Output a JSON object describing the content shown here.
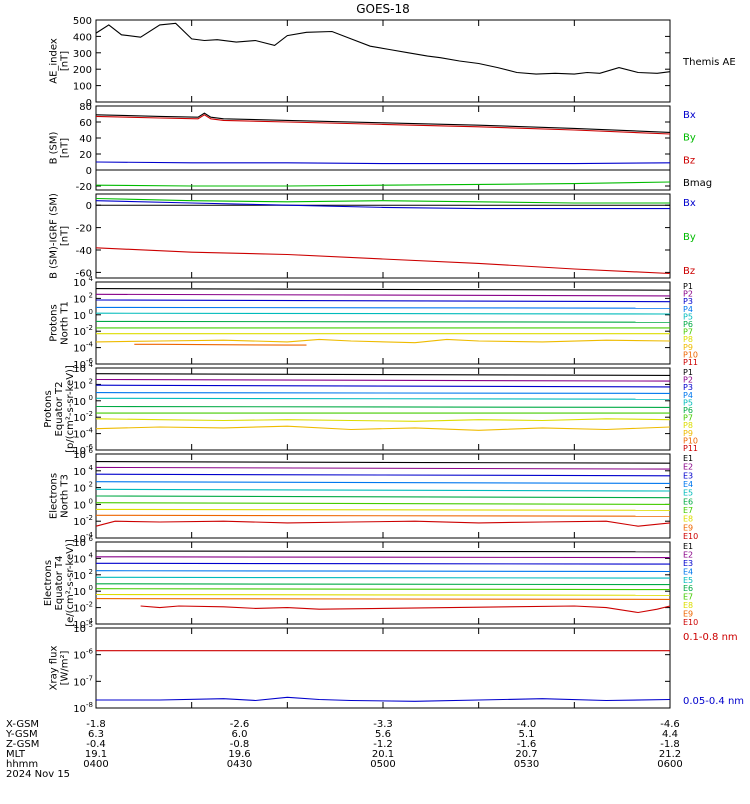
{
  "title": "GOES-18",
  "chart_data": [
    {
      "type": "line",
      "ylabel": "AE_index\n[nT]",
      "ylim": [
        0,
        500
      ],
      "ticks": [
        [
          0,
          "0"
        ],
        [
          100,
          "100"
        ],
        [
          200,
          "200"
        ],
        [
          300,
          "300"
        ],
        [
          400,
          "400"
        ],
        [
          500,
          "500"
        ]
      ],
      "log": false,
      "series": [
        {
          "name": "Themis AE",
          "color": "#000000",
          "x": [
            0,
            4,
            8,
            14,
            20,
            25,
            30,
            34,
            38,
            44,
            50,
            56,
            60,
            66,
            74,
            80,
            86,
            92,
            98,
            104,
            108,
            114,
            120,
            126,
            132,
            138,
            144,
            150,
            154,
            158,
            164,
            170,
            176,
            180
          ],
          "values": [
            420,
            470,
            410,
            395,
            470,
            480,
            385,
            375,
            380,
            365,
            375,
            345,
            405,
            425,
            430,
            385,
            340,
            320,
            300,
            280,
            270,
            250,
            235,
            210,
            180,
            170,
            175,
            170,
            180,
            175,
            210,
            180,
            175,
            185
          ]
        }
      ]
    },
    {
      "type": "line",
      "ylabel": "B (SM)\n[nT]",
      "ylim": [
        -25,
        80
      ],
      "ticks": [
        [
          80,
          "80"
        ],
        [
          60,
          "60"
        ],
        [
          40,
          "40"
        ],
        [
          20,
          "20"
        ],
        [
          0,
          "0"
        ],
        [
          -20,
          "-20"
        ]
      ],
      "log": false,
      "series": [
        {
          "name": "Bx",
          "color": "#0000cc",
          "x": [
            0,
            30,
            60,
            90,
            120,
            150,
            180
          ],
          "values": [
            10,
            9,
            9,
            8,
            8,
            8,
            9
          ]
        },
        {
          "name": "By",
          "color": "#00bb00",
          "x": [
            0,
            30,
            60,
            90,
            120,
            150,
            180
          ],
          "values": [
            -19,
            -20,
            -20,
            -19,
            -18,
            -17,
            -15
          ]
        },
        {
          "name": "Bz",
          "color": "#cc0000",
          "x": [
            0,
            20,
            32,
            34,
            36,
            40,
            60,
            90,
            120,
            150,
            180
          ],
          "values": [
            67,
            65,
            64,
            69,
            64,
            62,
            60,
            57,
            54,
            50,
            45
          ]
        },
        {
          "name": "Bmag",
          "color": "#000000",
          "x": [
            0,
            20,
            32,
            34,
            36,
            40,
            60,
            90,
            120,
            150,
            180
          ],
          "values": [
            69,
            67,
            66,
            71,
            66,
            64,
            62,
            59,
            56,
            52,
            47
          ]
        }
      ]
    },
    {
      "type": "line",
      "ylabel": "B (SM)-IGRF (SM)\n[nT]",
      "ylim": [
        -65,
        10
      ],
      "ticks": [
        [
          0,
          "0"
        ],
        [
          -20,
          "-20"
        ],
        [
          -40,
          "-40"
        ],
        [
          -60,
          "-60"
        ]
      ],
      "log": false,
      "series": [
        {
          "name": "Bx",
          "color": "#0000cc",
          "x": [
            0,
            30,
            60,
            90,
            120,
            150,
            180
          ],
          "values": [
            4,
            2,
            0,
            -2,
            -3,
            -3,
            -3
          ]
        },
        {
          "name": "By",
          "color": "#00bb00",
          "x": [
            0,
            30,
            60,
            90,
            120,
            150,
            180
          ],
          "values": [
            6,
            4,
            3,
            4,
            3,
            2,
            2
          ]
        },
        {
          "name": "Bz",
          "color": "#cc0000",
          "x": [
            0,
            30,
            60,
            90,
            120,
            150,
            180
          ],
          "values": [
            -38,
            -42,
            -44,
            -48,
            -52,
            -57,
            -61
          ]
        }
      ]
    },
    {
      "type": "line",
      "ylabel": "Protons\nNorth T1",
      "ylim": [
        -6,
        4
      ],
      "ticks": [
        [
          4,
          "10^4"
        ],
        [
          2,
          "10^2"
        ],
        [
          0,
          "10^0"
        ],
        [
          -2,
          "10^-2"
        ],
        [
          -4,
          "10^-4"
        ],
        [
          -6,
          "10^-6"
        ]
      ],
      "log": true,
      "series": [
        {
          "name": "P1",
          "color": "#000000",
          "x": [
            0,
            180
          ],
          "values": [
            3.2,
            3.0
          ]
        },
        {
          "name": "P2",
          "color": "#880088",
          "x": [
            0,
            180
          ],
          "values": [
            2.5,
            2.3
          ]
        },
        {
          "name": "P3",
          "color": "#0000cc",
          "x": [
            0,
            180
          ],
          "values": [
            1.8,
            1.6
          ]
        },
        {
          "name": "P4",
          "color": "#0077ee",
          "x": [
            0,
            180
          ],
          "values": [
            0.9,
            0.8
          ]
        },
        {
          "name": "P5",
          "color": "#00bbbb",
          "x": [
            0,
            180
          ],
          "values": [
            0.2,
            0.1
          ]
        },
        {
          "name": "P6",
          "color": "#00aa44",
          "x": [
            0,
            180
          ],
          "values": [
            -0.8,
            -0.9
          ]
        },
        {
          "name": "P7",
          "color": "#44cc00",
          "x": [
            0,
            180
          ],
          "values": [
            -1.6,
            -1.6
          ]
        },
        {
          "name": "P8",
          "color": "#dddd00",
          "x": [
            0,
            180
          ],
          "values": [
            -2.3,
            -2.3
          ]
        },
        {
          "name": "P9",
          "color": "#eebb00",
          "x": [
            0,
            20,
            40,
            60,
            70,
            80,
            100,
            110,
            120,
            140,
            160,
            180
          ],
          "values": [
            -3.3,
            -3.2,
            -3.1,
            -3.3,
            -3.0,
            -3.2,
            -3.4,
            -3.0,
            -3.2,
            -3.3,
            -3.1,
            -3.2
          ]
        },
        {
          "name": "P10",
          "color": "#ee6600",
          "x": [
            12,
            20,
            60,
            66
          ],
          "values": [
            -3.6,
            -3.6,
            -3.7,
            -3.7
          ]
        },
        {
          "name": "P11",
          "color": "#cc0000",
          "x": [],
          "values": []
        }
      ]
    },
    {
      "type": "line",
      "ylabel": "Protons\nEquator T2\n[p/(cm²-s-sr-keV)]",
      "ylim": [
        -6,
        4
      ],
      "ticks": [
        [
          4,
          "10^4"
        ],
        [
          2,
          "10^2"
        ],
        [
          0,
          "10^0"
        ],
        [
          -2,
          "10^-2"
        ],
        [
          -4,
          "10^-4"
        ],
        [
          -6,
          "10^-6"
        ]
      ],
      "log": true,
      "series": [
        {
          "name": "P1",
          "color": "#000000",
          "x": [
            0,
            180
          ],
          "values": [
            3.3,
            3.1
          ]
        },
        {
          "name": "P2",
          "color": "#880088",
          "x": [
            0,
            180
          ],
          "values": [
            2.6,
            2.4
          ]
        },
        {
          "name": "P3",
          "color": "#0000cc",
          "x": [
            0,
            180
          ],
          "values": [
            1.9,
            1.7
          ]
        },
        {
          "name": "P4",
          "color": "#0077ee",
          "x": [
            0,
            180
          ],
          "values": [
            1.0,
            0.9
          ]
        },
        {
          "name": "P5",
          "color": "#00bbbb",
          "x": [
            0,
            180
          ],
          "values": [
            0.3,
            0.2
          ]
        },
        {
          "name": "P6",
          "color": "#00aa44",
          "x": [
            0,
            180
          ],
          "values": [
            -0.7,
            -0.8
          ]
        },
        {
          "name": "P7",
          "color": "#44cc00",
          "x": [
            0,
            180
          ],
          "values": [
            -1.5,
            -1.5
          ]
        },
        {
          "name": "P8",
          "color": "#dddd00",
          "x": [
            0,
            20,
            40,
            60,
            80,
            100,
            120,
            140,
            160,
            180
          ],
          "values": [
            -2.2,
            -2.3,
            -2.4,
            -2.3,
            -2.4,
            -2.5,
            -2.3,
            -2.4,
            -2.2,
            -2.3
          ]
        },
        {
          "name": "P9",
          "color": "#eebb00",
          "x": [
            0,
            20,
            40,
            60,
            80,
            100,
            120,
            140,
            160,
            180
          ],
          "values": [
            -3.4,
            -3.2,
            -3.3,
            -3.1,
            -3.5,
            -3.3,
            -3.6,
            -3.3,
            -3.5,
            -3.2
          ]
        },
        {
          "name": "P10",
          "color": "#ee6600",
          "x": [],
          "values": []
        },
        {
          "name": "P11",
          "color": "#cc0000",
          "x": [],
          "values": []
        }
      ]
    },
    {
      "type": "line",
      "ylabel": "Electrons\nNorth T3",
      "ylim": [
        -4,
        6
      ],
      "ticks": [
        [
          6,
          "10^6"
        ],
        [
          4,
          "10^4"
        ],
        [
          2,
          "10^2"
        ],
        [
          0,
          "10^0"
        ],
        [
          -2,
          "10^-2"
        ],
        [
          -4,
          "10^-4"
        ]
      ],
      "log": true,
      "series": [
        {
          "name": "E1",
          "color": "#000000",
          "x": [
            0,
            180
          ],
          "values": [
            5.1,
            4.9
          ]
        },
        {
          "name": "E2",
          "color": "#880088",
          "x": [
            0,
            180
          ],
          "values": [
            4.4,
            4.2
          ]
        },
        {
          "name": "E3",
          "color": "#0000cc",
          "x": [
            0,
            180
          ],
          "values": [
            3.6,
            3.4
          ]
        },
        {
          "name": "E4",
          "color": "#0077ee",
          "x": [
            0,
            180
          ],
          "values": [
            2.7,
            2.5
          ]
        },
        {
          "name": "E5",
          "color": "#00bbbb",
          "x": [
            0,
            180
          ],
          "values": [
            1.8,
            1.6
          ]
        },
        {
          "name": "E6",
          "color": "#00aa44",
          "x": [
            0,
            180
          ],
          "values": [
            1.0,
            0.8
          ]
        },
        {
          "name": "E7",
          "color": "#44cc00",
          "x": [
            0,
            180
          ],
          "values": [
            0.2,
            0.0
          ]
        },
        {
          "name": "E8",
          "color": "#dddd00",
          "x": [
            0,
            180
          ],
          "values": [
            -0.6,
            -0.7
          ]
        },
        {
          "name": "E9",
          "color": "#ee6600",
          "x": [
            0,
            180
          ],
          "values": [
            -1.3,
            -1.4
          ]
        },
        {
          "name": "E10",
          "color": "#cc0000",
          "x": [
            0,
            6,
            20,
            40,
            60,
            80,
            100,
            120,
            140,
            160,
            170,
            180
          ],
          "values": [
            -2.6,
            -2.0,
            -2.1,
            -2.0,
            -2.2,
            -2.1,
            -2.0,
            -2.2,
            -2.1,
            -2.0,
            -2.6,
            -2.2
          ]
        }
      ]
    },
    {
      "type": "line",
      "ylabel": "Electrons\nEquator T4\n[e/(cm²-s-sr-keV)]",
      "ylim": [
        -4,
        6
      ],
      "ticks": [
        [
          6,
          "10^6"
        ],
        [
          4,
          "10^4"
        ],
        [
          2,
          "10^2"
        ],
        [
          0,
          "10^0"
        ],
        [
          -2,
          "10^-2"
        ],
        [
          -4,
          "10^-4"
        ]
      ],
      "log": true,
      "series": [
        {
          "name": "E1",
          "color": "#000000",
          "x": [
            0,
            180
          ],
          "values": [
            4.9,
            4.8
          ]
        },
        {
          "name": "E2",
          "color": "#880088",
          "x": [
            0,
            180
          ],
          "values": [
            4.2,
            4.1
          ]
        },
        {
          "name": "E3",
          "color": "#0000cc",
          "x": [
            0,
            180
          ],
          "values": [
            3.4,
            3.3
          ]
        },
        {
          "name": "E4",
          "color": "#0077ee",
          "x": [
            0,
            180
          ],
          "values": [
            2.5,
            2.4
          ]
        },
        {
          "name": "E5",
          "color": "#00bbbb",
          "x": [
            0,
            180
          ],
          "values": [
            1.7,
            1.6
          ]
        },
        {
          "name": "E6",
          "color": "#00aa44",
          "x": [
            0,
            180
          ],
          "values": [
            0.9,
            0.8
          ]
        },
        {
          "name": "E7",
          "color": "#44cc00",
          "x": [
            0,
            180
          ],
          "values": [
            0.3,
            0.2
          ]
        },
        {
          "name": "E8",
          "color": "#dddd00",
          "x": [
            0,
            180
          ],
          "values": [
            -0.4,
            -0.5
          ]
        },
        {
          "name": "E9",
          "color": "#ee6600",
          "x": [
            0,
            180
          ],
          "values": [
            -0.9,
            -1.0
          ]
        },
        {
          "name": "E10",
          "color": "#cc0000",
          "x": [
            14,
            20,
            26,
            40,
            50,
            60,
            70,
            150,
            160,
            170,
            176,
            180
          ],
          "values": [
            -1.8,
            -2.0,
            -1.8,
            -1.9,
            -2.1,
            -2.0,
            -2.2,
            -1.8,
            -2.0,
            -2.6,
            -2.2,
            -1.8
          ]
        }
      ]
    },
    {
      "type": "line",
      "ylabel": "Xray flux\n[W/m²]",
      "ylim": [
        -8,
        -5
      ],
      "ticks": [
        [
          -5,
          "10^-5"
        ],
        [
          -6,
          "10^-6"
        ],
        [
          -7,
          "10^-7"
        ],
        [
          -8,
          "10^-8"
        ]
      ],
      "log": true,
      "series": [
        {
          "name": "0.1-0.8 nm",
          "color": "#cc0000",
          "x": [
            0,
            180
          ],
          "values": [
            -5.85,
            -5.85
          ]
        },
        {
          "name": "0.05-0.4 nm",
          "color": "#0000cc",
          "x": [
            0,
            20,
            40,
            50,
            60,
            70,
            80,
            100,
            120,
            140,
            160,
            180
          ],
          "values": [
            -7.7,
            -7.7,
            -7.65,
            -7.72,
            -7.6,
            -7.68,
            -7.72,
            -7.75,
            -7.7,
            -7.65,
            -7.72,
            -7.68
          ]
        }
      ]
    }
  ],
  "time_axis": {
    "rows": [
      {
        "label": "X-GSM",
        "values": [
          "-1.8",
          "-2.6",
          "-3.3",
          "-4.0",
          "-4.6"
        ]
      },
      {
        "label": "Y-GSM",
        "values": [
          "6.3",
          "6.0",
          "5.6",
          "5.1",
          "4.4"
        ]
      },
      {
        "label": "Z-GSM",
        "values": [
          "-0.4",
          "-0.8",
          "-1.2",
          "-1.6",
          "-1.8"
        ]
      },
      {
        "label": "MLT",
        "values": [
          "19.1",
          "19.6",
          "20.1",
          "20.7",
          "21.2"
        ]
      },
      {
        "label": "hhmm",
        "values": [
          "0400",
          "0430",
          "0500",
          "0530",
          "0600"
        ]
      }
    ],
    "date": "2024 Nov 15",
    "xlim": [
      0,
      180
    ]
  }
}
